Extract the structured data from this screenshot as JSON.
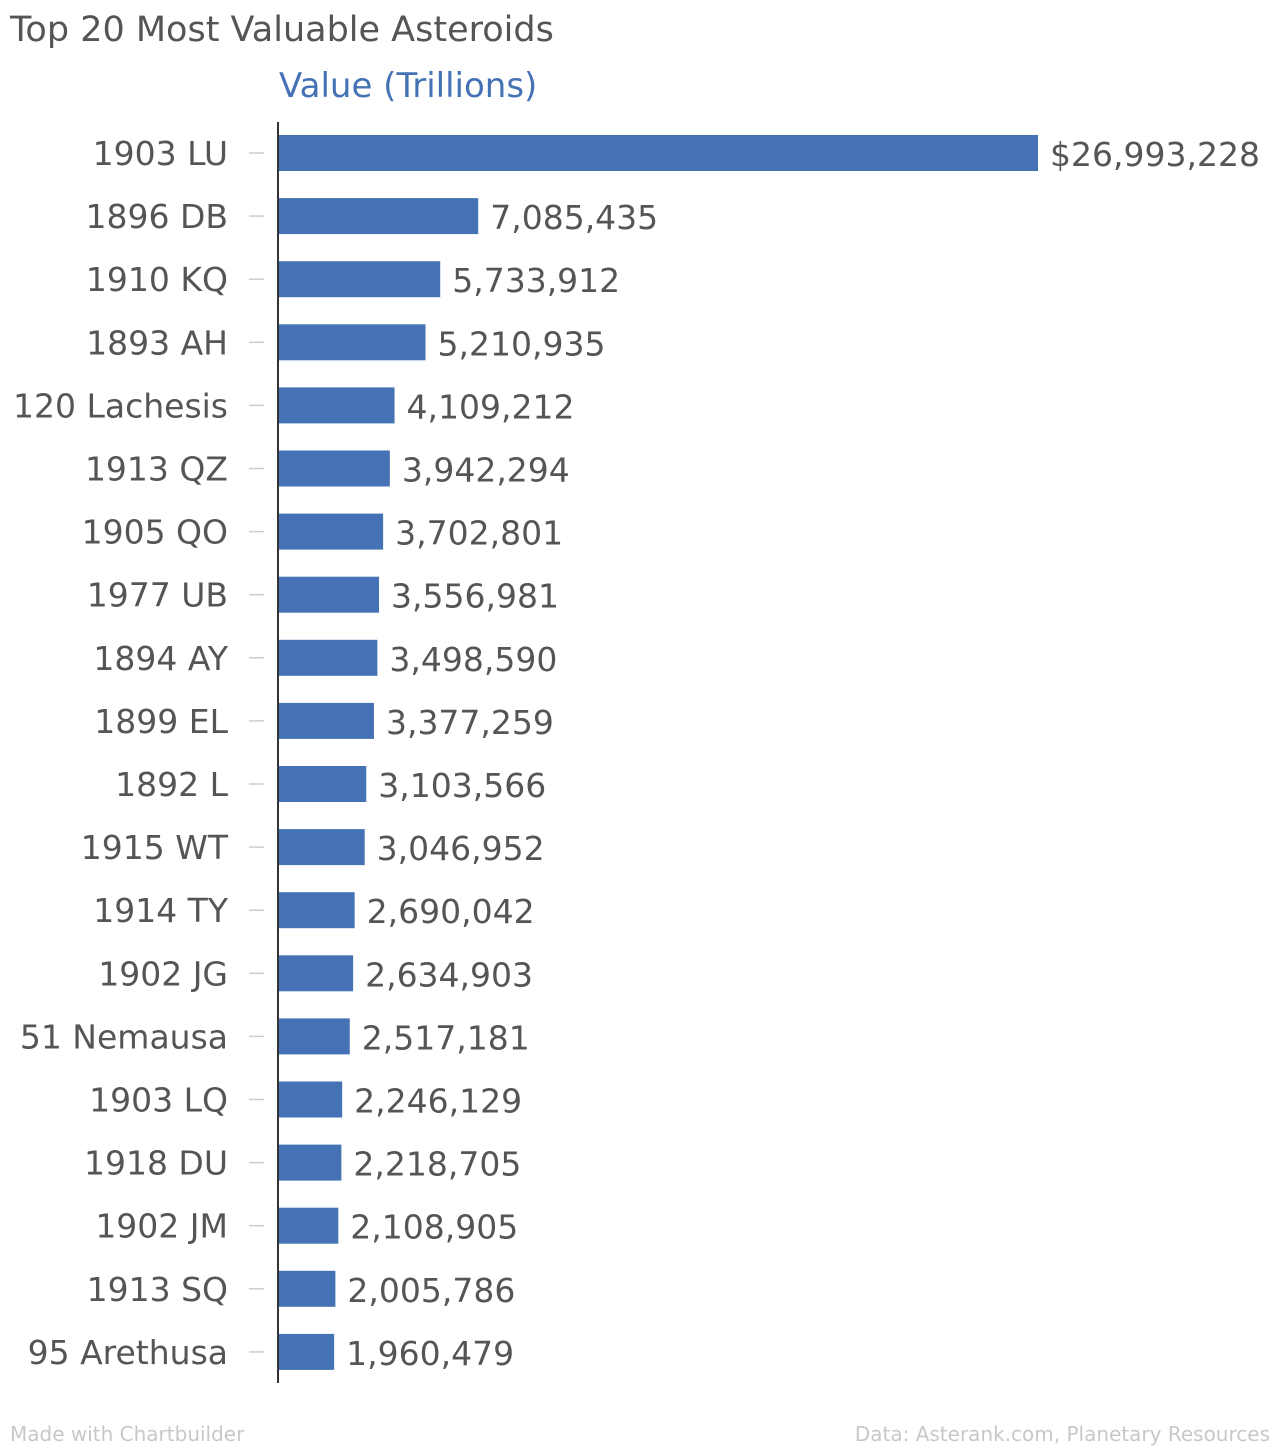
{
  "title": "Top 20 Most Valuable Asteroids",
  "footer": {
    "credit": "Made with Chartbuilder",
    "source": "Data: Asterank.com, Planetary Resources"
  },
  "colors": {
    "bar": "#4472b4",
    "text": "#555555",
    "axis": "#333333",
    "tick": "#cccccc",
    "footer": "#c8c8c8"
  },
  "chart_data": {
    "type": "bar",
    "orientation": "horizontal",
    "title": "Top 20 Most Valuable Asteroids",
    "series": [
      {
        "name": "Value (Trillions)",
        "values": [
          26993228,
          7085435,
          5733912,
          5210935,
          4109212,
          3942294,
          3702801,
          3556981,
          3498590,
          3377259,
          3103566,
          3046952,
          2690042,
          2634903,
          2517181,
          2246129,
          2218705,
          2108905,
          2005786,
          1960479
        ]
      }
    ],
    "categories": [
      "1903 LU",
      "1896 DB",
      "1910 KQ",
      "1893 AH",
      "120 Lachesis",
      "1913 QZ",
      "1905 QO",
      "1977 UB",
      "1894 AY",
      "1899 EL",
      "1892 L",
      "1915 WT",
      "1914 TY",
      "1902 JG",
      "51 Nemausa",
      "1903 LQ",
      "1918 DU",
      "1902 JM",
      "1913 SQ",
      "95 Arethusa"
    ],
    "data_labels": [
      "$26,993,228",
      "7,085,435",
      "5,733,912",
      "5,210,935",
      "4,109,212",
      "3,942,294",
      "3,702,801",
      "3,556,981",
      "3,498,590",
      "3,377,259",
      "3,103,566",
      "3,046,952",
      "2,690,042",
      "2,634,903",
      "2,517,181",
      "2,246,129",
      "2,218,705",
      "2,108,905",
      "2,005,786",
      "1,960,479"
    ],
    "xlim": [
      0,
      26993228
    ],
    "grid": false,
    "legend": "none"
  }
}
